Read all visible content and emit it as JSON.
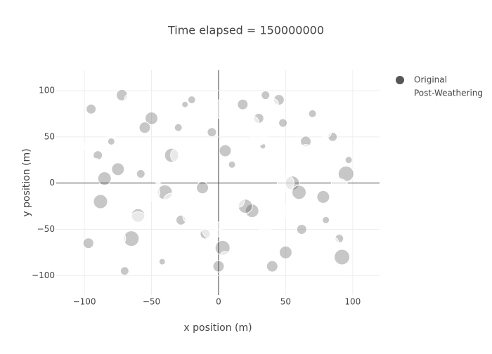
{
  "chart_data": {
    "type": "scatter",
    "title": "Time elapsed = 150000000",
    "x_label": "x position (m)",
    "y_label": "y position (m)",
    "xlim": [
      -121,
      120
    ],
    "ylim": [
      -121,
      122
    ],
    "xticks": [
      {
        "value": -100,
        "label": "−100"
      },
      {
        "value": -50,
        "label": "−50"
      },
      0,
      50,
      100
    ],
    "yticks": [
      {
        "value": -100,
        "label": "−100"
      },
      {
        "value": -50,
        "label": "−50"
      },
      0,
      50,
      100
    ],
    "grid": true,
    "zero_lines": true,
    "legend": "right",
    "series": [
      {
        "name": "Original",
        "color": "#444444",
        "opacity": 0.3,
        "x": [
          -95,
          -88,
          -80,
          -72,
          -65,
          -58,
          -50,
          -42,
          -35,
          -28,
          -20,
          -12,
          -5,
          3,
          10,
          18,
          25,
          33,
          40,
          48,
          55,
          62,
          70,
          78,
          85,
          92,
          97,
          -97,
          -85,
          -70,
          -55,
          -40,
          -25,
          -10,
          5,
          20,
          35,
          50,
          65,
          80,
          95,
          -90,
          -60,
          -30,
          0,
          30,
          60,
          90,
          -75,
          45
        ],
        "values": [
          80,
          -20,
          45,
          95,
          -60,
          10,
          70,
          -85,
          30,
          -40,
          90,
          -5,
          55,
          -70,
          20,
          85,
          -30,
          40,
          -90,
          65,
          0,
          -50,
          75,
          -15,
          50,
          -80,
          25,
          -65,
          5,
          -95,
          60,
          -10,
          85,
          -55,
          35,
          -25,
          95,
          -75,
          45,
          -40,
          10,
          30,
          -35,
          60,
          -90,
          70,
          -10,
          -60,
          15,
          90
        ],
        "sizes": [
          14,
          20,
          10,
          16,
          22,
          12,
          18,
          9,
          20,
          14,
          11,
          17,
          13,
          21,
          10,
          15,
          19,
          8,
          16,
          12,
          20,
          14,
          11,
          18,
          13,
          22,
          10,
          15,
          19,
          12,
          16,
          21,
          9,
          14,
          17,
          20,
          12,
          18,
          15,
          10,
          22,
          13,
          19,
          11,
          16,
          14,
          20,
          12,
          18,
          15
        ]
      },
      {
        "name": "Post-Weathering",
        "color": "#ffffff",
        "opacity": 0.6,
        "x": [
          -80,
          -92,
          -60,
          -45,
          -30,
          -15,
          0,
          15,
          30,
          45,
          60,
          75,
          90,
          -85,
          -70,
          -50,
          -25,
          -5,
          20,
          40,
          55,
          80,
          95,
          -65,
          -35,
          10,
          35,
          65,
          -95,
          -20,
          5,
          25,
          50,
          85,
          -75
        ],
        "values": [
          60,
          20,
          -40,
          5,
          30,
          -75,
          80,
          -20,
          50,
          -60,
          15,
          -85,
          -5,
          -90,
          40,
          -10,
          70,
          -50,
          25,
          85,
          -30,
          55,
          -95,
          90,
          -20,
          10,
          -45,
          35,
          40,
          -35,
          -80,
          65,
          0,
          -65,
          -60
        ],
        "sizes": [
          28,
          18,
          24,
          14,
          22,
          20,
          26,
          16,
          24,
          12,
          22,
          18,
          26,
          20,
          16,
          24,
          14,
          28,
          22,
          18,
          26,
          16,
          12,
          20,
          24,
          14,
          22,
          18,
          20,
          26,
          16,
          20,
          24,
          18,
          22
        ]
      }
    ]
  }
}
